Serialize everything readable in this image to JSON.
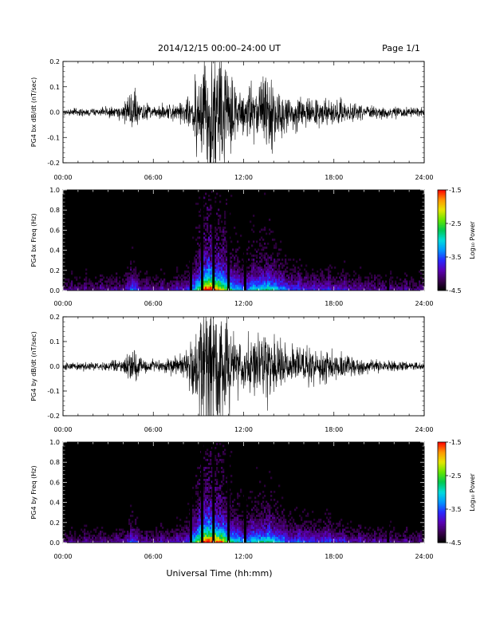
{
  "header": {
    "title": "2014/12/15   00:00–24:00 UT",
    "page": "Page 1/1"
  },
  "xlabel": "Universal Time (hh:mm)",
  "colorbar": {
    "label": "Log₁₀ Power",
    "ticks": [
      "-1.5",
      "-2.5",
      "-3.5",
      "-4.5"
    ],
    "range": [
      -4.5,
      -1.5
    ],
    "colors": [
      "#000000",
      "#3a0050",
      "#5a00b4",
      "#2828ff",
      "#0096ff",
      "#00dcdc",
      "#00c850",
      "#64e600",
      "#e6e600",
      "#ff9600",
      "#ff0000"
    ]
  },
  "chart_data": [
    {
      "type": "line",
      "ylabel": "PG4 bx dB/dt (nT/sec)",
      "xlim": [
        0,
        24
      ],
      "ylim": [
        -0.2,
        0.2
      ],
      "xticks": [
        "00:00",
        "06:00",
        "12:00",
        "18:00",
        "24:00"
      ],
      "yticks": [
        "0.2",
        "0.1",
        "0.0",
        "-0.1",
        "-0.2"
      ],
      "envelope": {
        "x_hours": [
          0,
          1,
          2,
          3,
          4,
          4.5,
          4.8,
          5.2,
          6,
          7,
          8,
          8.5,
          9,
          9.5,
          10,
          10.5,
          11,
          11.5,
          12,
          12.5,
          13,
          13.5,
          14,
          14.5,
          15,
          15.5,
          16,
          16.5,
          17,
          17.5,
          18,
          18.5,
          19,
          20,
          21,
          22,
          23,
          24
        ],
        "amplitude": [
          0.008,
          0.01,
          0.012,
          0.015,
          0.02,
          0.05,
          0.06,
          0.02,
          0.018,
          0.02,
          0.03,
          0.05,
          0.12,
          0.2,
          0.2,
          0.16,
          0.12,
          0.08,
          0.06,
          0.08,
          0.09,
          0.1,
          0.09,
          0.07,
          0.05,
          0.05,
          0.04,
          0.04,
          0.035,
          0.04,
          0.03,
          0.035,
          0.025,
          0.02,
          0.018,
          0.015,
          0.012,
          0.01
        ]
      }
    },
    {
      "type": "heatmap",
      "ylabel": "PG4 bx Freq (Hz)",
      "xlim": [
        0,
        24
      ],
      "ylim": [
        0.0,
        1.0
      ],
      "xticks": [
        "00:00",
        "06:00",
        "12:00",
        "18:00",
        "24:00"
      ],
      "yticks": [
        "1.0",
        "0.8",
        "0.6",
        "0.4",
        "0.2",
        "0.0"
      ],
      "gaps_hours": [
        8.5,
        9.25,
        10.0,
        11.0,
        12.1,
        21.6
      ]
    },
    {
      "type": "line",
      "ylabel": "PG4 by dB/dt (nT/sec)",
      "xlim": [
        0,
        24
      ],
      "ylim": [
        -0.2,
        0.2
      ],
      "xticks": [
        "00:00",
        "06:00",
        "12:00",
        "18:00",
        "24:00"
      ],
      "yticks": [
        "0.2",
        "0.1",
        "0.0",
        "-0.1",
        "-0.2"
      ],
      "envelope": {
        "x_hours": [
          0,
          1,
          2,
          3,
          4,
          4.5,
          4.8,
          5.2,
          6,
          7,
          8,
          8.5,
          9,
          9.5,
          10,
          10.5,
          11,
          11.5,
          12,
          12.5,
          13,
          13.5,
          14,
          14.5,
          15,
          15.5,
          16,
          16.5,
          17,
          17.5,
          18,
          18.5,
          19,
          20,
          21,
          22,
          23,
          24
        ],
        "amplitude": [
          0.008,
          0.01,
          0.012,
          0.015,
          0.02,
          0.04,
          0.05,
          0.02,
          0.018,
          0.02,
          0.03,
          0.06,
          0.14,
          0.2,
          0.2,
          0.17,
          0.13,
          0.09,
          0.07,
          0.08,
          0.09,
          0.1,
          0.09,
          0.07,
          0.05,
          0.05,
          0.05,
          0.05,
          0.04,
          0.05,
          0.035,
          0.04,
          0.025,
          0.02,
          0.018,
          0.015,
          0.012,
          0.01
        ]
      }
    },
    {
      "type": "heatmap",
      "ylabel": "PG4 by Freq (Hz)",
      "xlim": [
        0,
        24
      ],
      "ylim": [
        0.0,
        1.0
      ],
      "xticks": [
        "00:00",
        "06:00",
        "12:00",
        "18:00",
        "24:00"
      ],
      "yticks": [
        "1.0",
        "0.8",
        "0.6",
        "0.4",
        "0.2",
        "0.0"
      ],
      "gaps_hours": [
        8.5,
        9.25,
        10.0,
        11.0,
        12.1,
        21.6
      ]
    }
  ]
}
